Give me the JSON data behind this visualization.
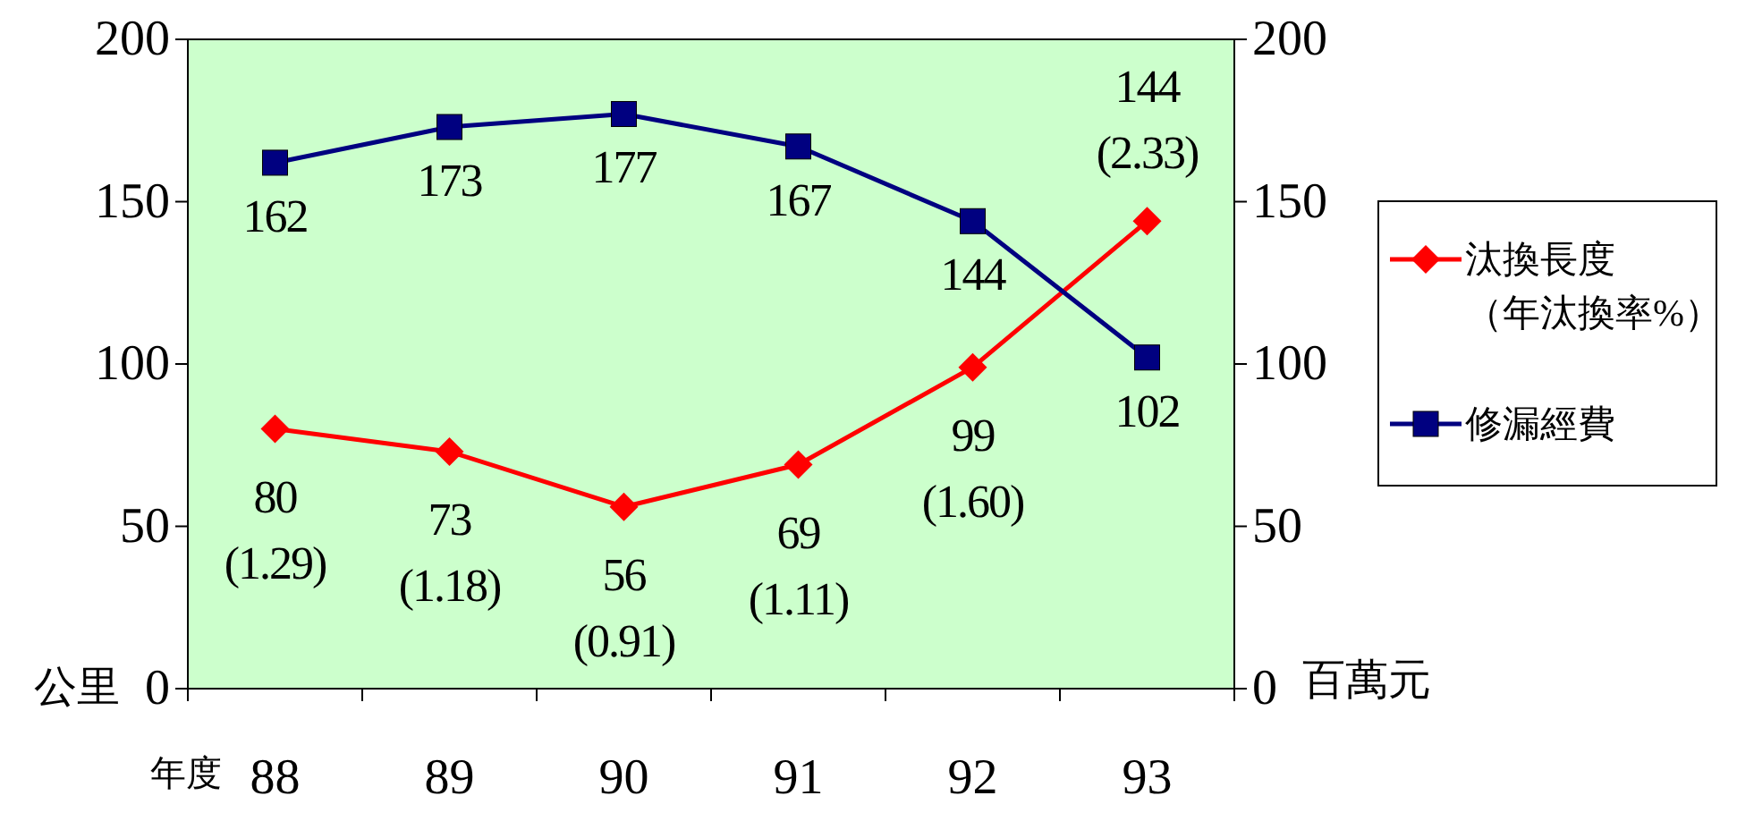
{
  "chart_data": {
    "type": "line",
    "ylabel": "公里",
    "y2label": "百萬元",
    "xlabel": "年度",
    "categories": [
      "88",
      "89",
      "90",
      "91",
      "92",
      "93"
    ],
    "ylim": [
      0,
      200
    ],
    "yticks": [
      0,
      50,
      100,
      150,
      200
    ],
    "y2lim": [
      0,
      200
    ],
    "y2ticks": [
      0,
      50,
      100,
      150,
      200
    ],
    "grid": false,
    "legend": "right",
    "line_style": "solid",
    "series": [
      {
        "name": "汰換長度（年汰換率%）",
        "color": "#ff0000",
        "marker": "diamond",
        "values": [
          80,
          73,
          56,
          69,
          99,
          144
        ],
        "value_labels": [
          "80\n(1.29)",
          "73\n(1.18)",
          "56\n(0.91)",
          "69\n(1.11)",
          "99\n(1.60)",
          "144\n(2.33)"
        ]
      },
      {
        "name": "修漏經費",
        "color": "#000080",
        "marker": "square",
        "axis": "y2",
        "values": [
          162,
          173,
          177,
          167,
          144,
          102
        ],
        "value_labels": [
          "162",
          "173",
          "177",
          "167",
          "144",
          "102"
        ]
      }
    ]
  }
}
